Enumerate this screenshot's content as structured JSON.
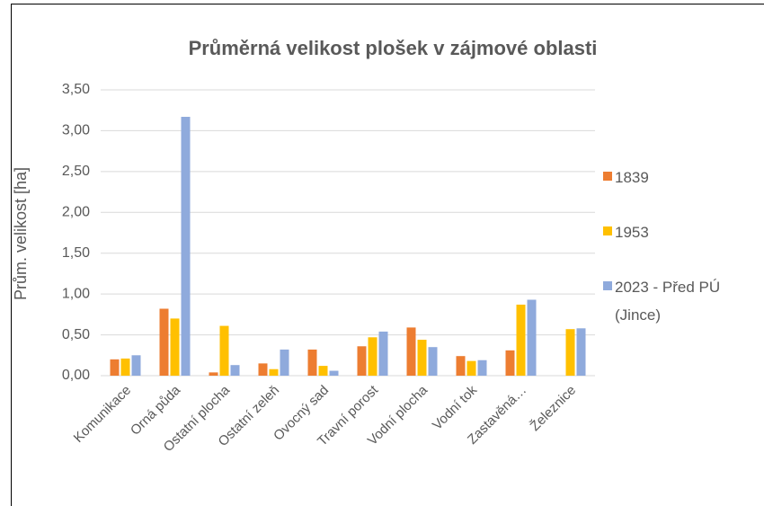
{
  "chart_data": {
    "type": "bar",
    "title": "Průměrná velikost plošek v zájmové oblasti",
    "y_label": "Prům. velikost [ha]",
    "categories": [
      "Komunikace",
      "Orná půda",
      "Ostatní plocha",
      "Ostatní zeleň",
      "Ovocný sad",
      "Travní porost",
      "Vodní plocha",
      "Vodní tok",
      "Zastavěná…",
      "Železnice"
    ],
    "series": [
      {
        "name": "1839",
        "color": "#ed7d31",
        "values": [
          0.2,
          0.82,
          0.04,
          0.15,
          0.32,
          0.36,
          0.59,
          0.24,
          0.31,
          null
        ]
      },
      {
        "name": "1953",
        "color": "#ffc000",
        "values": [
          0.21,
          0.7,
          0.61,
          0.08,
          0.12,
          0.47,
          0.44,
          0.18,
          0.87,
          0.57
        ]
      },
      {
        "name": "2023 - Před PÚ (Jince)",
        "color": "#8faadc",
        "values": [
          0.25,
          3.17,
          0.13,
          0.32,
          0.06,
          0.54,
          0.35,
          0.19,
          0.93,
          0.58
        ]
      }
    ],
    "ylim": [
      0,
      3.5
    ],
    "yticks": [
      {
        "value": 0,
        "label": "0,00"
      },
      {
        "value": 0.5,
        "label": "0,50"
      },
      {
        "value": 1,
        "label": "1,00"
      },
      {
        "value": 1.5,
        "label": "1,50"
      },
      {
        "value": 2,
        "label": "2,00"
      },
      {
        "value": 2.5,
        "label": "2,50"
      },
      {
        "value": 3,
        "label": "3,00"
      },
      {
        "value": 3.5,
        "label": "3,50"
      }
    ],
    "grid": true,
    "legend": "right"
  }
}
